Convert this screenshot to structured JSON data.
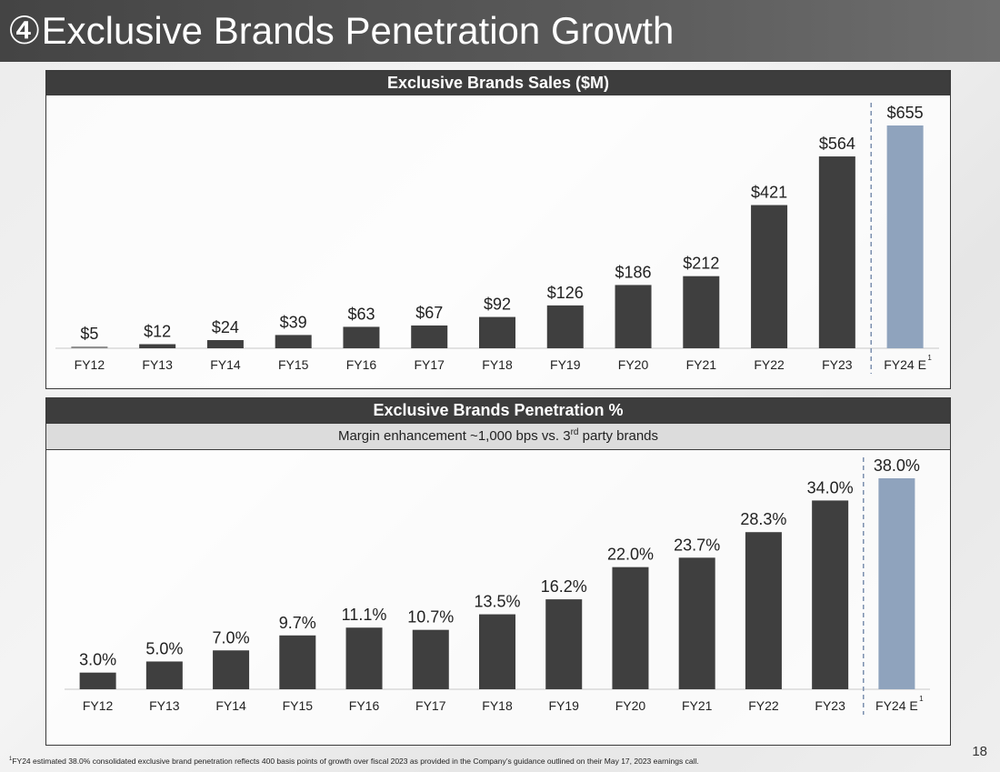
{
  "slide": {
    "title": "④Exclusive Brands Penetration Growth",
    "page_number": "18",
    "footnote_marker": "1",
    "footnote": "FY24 estimated 38.0% consolidated exclusive brand penetration reflects 400 basis points of growth over fiscal 2023 as provided in the Company’s guidance outlined on their May 17, 2023 earnings call."
  },
  "colors": {
    "bar": "#3f3f3f",
    "estimate_bar": "#8fa3bd",
    "first_bar": "#8a8a8a",
    "divider": "#7a8fae"
  },
  "chart_data": [
    {
      "type": "bar",
      "title": "Exclusive Brands Sales ($M)",
      "subtitle": "",
      "categories": [
        "FY12",
        "FY13",
        "FY14",
        "FY15",
        "FY16",
        "FY17",
        "FY18",
        "FY19",
        "FY20",
        "FY21",
        "FY22",
        "FY23",
        "FY24 E"
      ],
      "values": [
        5,
        12,
        24,
        39,
        63,
        67,
        92,
        126,
        186,
        212,
        421,
        564,
        655
      ],
      "labels": [
        "$5",
        "$12",
        "$24",
        "$39",
        "$63",
        "$67",
        "$92",
        "$126",
        "$186",
        "$212",
        "$421",
        "$564",
        "$655"
      ],
      "estimate_index": 12,
      "estimate_marker": "1",
      "ylim": [
        0,
        655
      ],
      "xlabel": "",
      "ylabel": ""
    },
    {
      "type": "bar",
      "title": "Exclusive Brands Penetration %",
      "subtitle_pre": "Margin enhancement ~1,000 bps vs. 3",
      "subtitle_sup": "rd",
      "subtitle_post": " party brands",
      "categories": [
        "FY12",
        "FY13",
        "FY14",
        "FY15",
        "FY16",
        "FY17",
        "FY18",
        "FY19",
        "FY20",
        "FY21",
        "FY22",
        "FY23",
        "FY24 E"
      ],
      "values": [
        3.0,
        5.0,
        7.0,
        9.7,
        11.1,
        10.7,
        13.5,
        16.2,
        22.0,
        23.7,
        28.3,
        34.0,
        38.0
      ],
      "labels": [
        "3.0%",
        "5.0%",
        "7.0%",
        "9.7%",
        "11.1%",
        "10.7%",
        "13.5%",
        "16.2%",
        "22.0%",
        "23.7%",
        "28.3%",
        "34.0%",
        "38.0%"
      ],
      "estimate_index": 12,
      "estimate_marker": "1",
      "ylim": [
        0,
        38
      ],
      "xlabel": "",
      "ylabel": ""
    }
  ]
}
